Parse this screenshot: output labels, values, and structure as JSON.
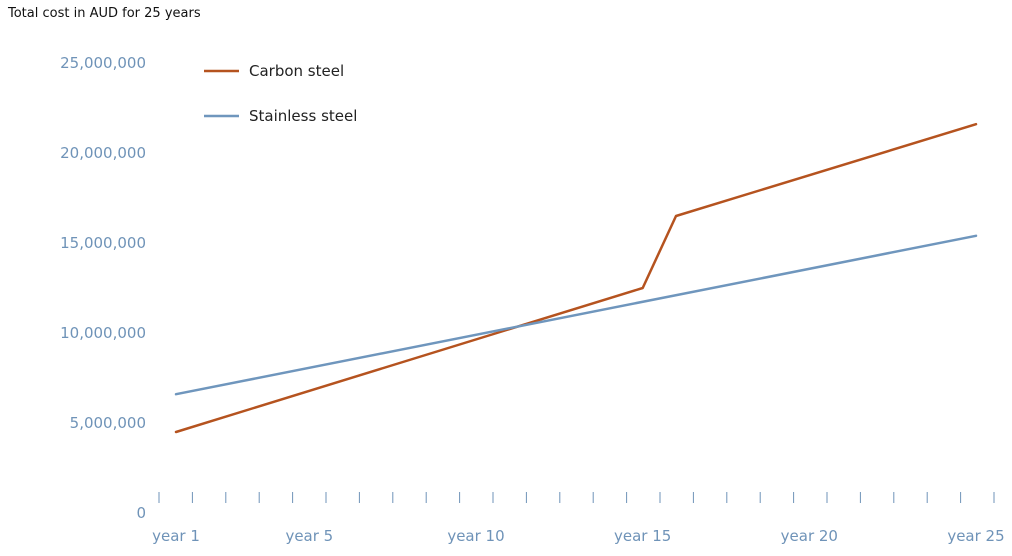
{
  "chart_data": {
    "type": "line",
    "title": "Total cost in AUD for 25 years",
    "xlabel": "",
    "ylabel": "",
    "x": [
      1,
      2,
      3,
      4,
      5,
      6,
      7,
      8,
      9,
      10,
      11,
      12,
      13,
      14,
      15,
      16,
      17,
      18,
      19,
      20,
      21,
      22,
      23,
      24,
      25
    ],
    "x_tick_labels": [
      {
        "x": 1,
        "label": "year 1"
      },
      {
        "x": 5,
        "label": "year 5"
      },
      {
        "x": 10,
        "label": "year 10"
      },
      {
        "x": 15,
        "label": "year 15"
      },
      {
        "x": 20,
        "label": "year 20"
      },
      {
        "x": 25,
        "label": "year 25"
      }
    ],
    "y_ticks": [
      0,
      5000000,
      10000000,
      15000000,
      20000000,
      25000000
    ],
    "y_tick_labels": [
      "0",
      "5,000,000",
      "10,000,000",
      "15,000,000",
      "20,000,000",
      "25,000,000"
    ],
    "ylim": [
      0,
      25000000
    ],
    "series": [
      {
        "name": "Carbon steel",
        "color": "#b5531f",
        "points": [
          [
            1,
            4500000
          ],
          [
            15,
            12500000
          ],
          [
            16,
            16500000
          ],
          [
            25,
            21600000
          ]
        ]
      },
      {
        "name": "Stainless steel",
        "color": "#6f96bd",
        "points": [
          [
            1,
            6600000
          ],
          [
            25,
            15400000
          ]
        ]
      }
    ],
    "legend": "top-left",
    "grid": false
  }
}
